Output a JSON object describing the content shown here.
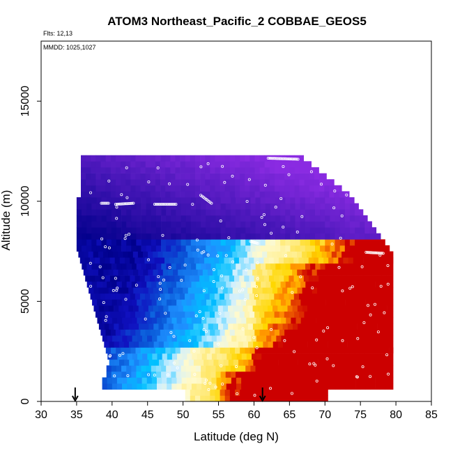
{
  "chart_data": {
    "type": "heatmap",
    "title": "ATOM3 Northeast_Pacific_2 COBBAE_GEOS5",
    "subtitle_flights": "Flts: 12,13",
    "subtitle_dates": "MMDD: 1025,1027",
    "xlabel": "Latitude (deg N)",
    "ylabel": "Altitude (m)",
    "xlim": [
      30,
      85
    ],
    "ylim": [
      0,
      18000
    ],
    "x_ticks": [
      "30",
      "35",
      "40",
      "45",
      "50",
      "55",
      "60",
      "65",
      "70",
      "75",
      "80",
      "85"
    ],
    "y_ticks": [
      "0",
      "5000",
      "10000",
      "15000"
    ],
    "arrows_latitude": [
      34.8,
      61.2
    ],
    "colors": {
      "low_violet": "#8a2be2",
      "low_navy": "#00008b",
      "mid_blue": "#1e90ff",
      "light": "#fffacd",
      "high_yellow": "#ffd700",
      "high_orange": "#ff8c00",
      "max_red": "#cc0000"
    }
  }
}
